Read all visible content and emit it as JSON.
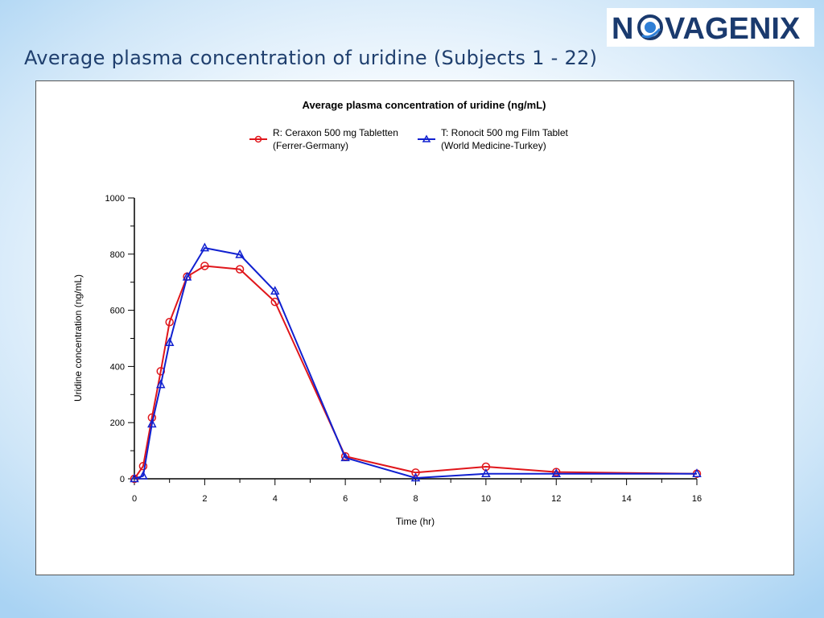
{
  "slide": {
    "title": "Average plasma concentration of uridine (Subjects 1 - 22)",
    "logo_text": "N  VAGENIX",
    "logo_icon": "target-globe-icon",
    "logo_color": "#1a3a6e",
    "logo_accent": "#2f7fd6"
  },
  "chart_data": {
    "type": "line",
    "title": "Average plasma concentration of uridine (ng/mL)",
    "xlabel": "Time (hr)",
    "ylabel": "Uridine concentration (ng/mL)",
    "xlim": [
      0,
      16
    ],
    "ylim": [
      0,
      1000
    ],
    "xticks": [
      0,
      2,
      4,
      6,
      8,
      10,
      12,
      14,
      16
    ],
    "yticks": [
      0,
      200,
      400,
      600,
      800,
      1000
    ],
    "grid": false,
    "legend_position": "top",
    "series": [
      {
        "name_line1": "R: Ceraxon 500 mg Tabletten",
        "name_line2": "(Ferrer-Germany)",
        "color": "#e0161b",
        "marker": "circle",
        "x": [
          0,
          0.25,
          0.5,
          0.75,
          1,
          1.5,
          2,
          3,
          4,
          6,
          8,
          10,
          12,
          16
        ],
        "y": [
          0,
          45,
          218,
          383,
          558,
          720,
          758,
          746,
          630,
          80,
          22,
          43,
          24,
          18
        ]
      },
      {
        "name_line1": "T: Ronocit 500 mg Film Tablet",
        "name_line2": "(World Medicine-Turkey)",
        "color": "#1020d0",
        "marker": "triangle",
        "x": [
          0,
          0.25,
          0.5,
          0.75,
          1,
          1.5,
          2,
          3,
          4,
          6,
          8,
          10,
          12,
          16
        ],
        "y": [
          0,
          10,
          195,
          335,
          485,
          718,
          822,
          798,
          668,
          75,
          3,
          18,
          18,
          18
        ]
      }
    ]
  }
}
